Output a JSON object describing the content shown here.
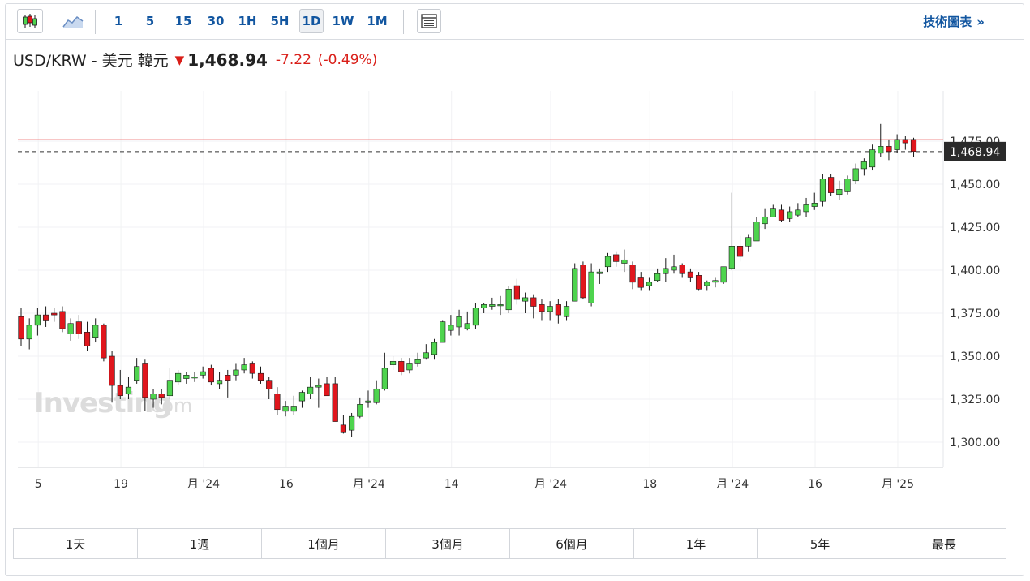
{
  "toolbar": {
    "chart_type_icons": [
      "candlestick-icon",
      "area-chart-icon"
    ],
    "intervals": [
      "1",
      "5",
      "15",
      "30",
      "1H",
      "5H",
      "1D",
      "1W",
      "1M"
    ],
    "active_interval": "1D",
    "table_icon": "table-view-icon",
    "tech_link": "技術圖表",
    "tech_chevron": "»"
  },
  "quote": {
    "symbol": "USD/KRW - 美元 韓元",
    "direction_icon": "down-arrow-icon",
    "price": "1,468.94",
    "change": "-7.22",
    "change_pct": "(-0.49%)"
  },
  "colors": {
    "up": "#4ed44e",
    "down": "#e0161d",
    "down_text": "#d91e18",
    "link": "#1256a0"
  },
  "watermark": {
    "brand": "Investing",
    "suffix": "com"
  },
  "range_buttons": [
    "1天",
    "1週",
    "1個月",
    "3個月",
    "6個月",
    "1年",
    "5年",
    "最長"
  ],
  "chart_data": {
    "type": "candlestick",
    "last_price_label": "1,468.94",
    "last_price": 1468.94,
    "high_line": 1475,
    "y_ticks": [
      "1,300.00",
      "1,325.00",
      "1,350.00",
      "1,375.00",
      "1,400.00",
      "1,425.00",
      "1,450.00",
      "1,475.00"
    ],
    "y_tick_values": [
      1300,
      1325,
      1350,
      1375,
      1400,
      1425,
      1450,
      1475
    ],
    "x_ticks": [
      {
        "label": "5",
        "index": 1
      },
      {
        "label": "19",
        "index": 11
      },
      {
        "label": "月 '24",
        "index": 21
      },
      {
        "label": "16",
        "index": 31
      },
      {
        "label": "月 '24",
        "index": 41
      },
      {
        "label": "14",
        "index": 51
      },
      {
        "label": "月 '24",
        "index": 63
      },
      {
        "label": "18",
        "index": 75
      },
      {
        "label": "月 '24",
        "index": 85
      },
      {
        "label": "16",
        "index": 95
      },
      {
        "label": "月 '25",
        "index": 105
      }
    ],
    "ohlc": [
      [
        1373,
        1378,
        1356,
        1360
      ],
      [
        1360,
        1372,
        1354,
        1368
      ],
      [
        1368,
        1378,
        1362,
        1374
      ],
      [
        1374,
        1379,
        1367,
        1371
      ],
      [
        1375,
        1378,
        1370,
        1374
      ],
      [
        1376,
        1379,
        1364,
        1366
      ],
      [
        1363,
        1372,
        1359,
        1369
      ],
      [
        1370,
        1374,
        1360,
        1363
      ],
      [
        1364,
        1370,
        1353,
        1356
      ],
      [
        1361,
        1372,
        1358,
        1368
      ],
      [
        1368,
        1369,
        1347,
        1349
      ],
      [
        1350,
        1353,
        1323,
        1333
      ],
      [
        1333,
        1342,
        1325,
        1327
      ],
      [
        1328,
        1338,
        1325,
        1332
      ],
      [
        1336,
        1349,
        1334,
        1344
      ],
      [
        1346,
        1348,
        1318,
        1326
      ],
      [
        1325,
        1331,
        1320,
        1328
      ],
      [
        1328,
        1331,
        1322,
        1326
      ],
      [
        1327,
        1343,
        1325,
        1336
      ],
      [
        1335,
        1342,
        1333,
        1340
      ],
      [
        1337,
        1341,
        1334,
        1339
      ],
      [
        1338,
        1341,
        1335,
        1338
      ],
      [
        1339,
        1344,
        1337,
        1341
      ],
      [
        1343,
        1345,
        1333,
        1335
      ],
      [
        1334,
        1341,
        1331,
        1336
      ],
      [
        1339,
        1342,
        1326,
        1336
      ],
      [
        1339,
        1346,
        1336,
        1342
      ],
      [
        1342,
        1349,
        1340,
        1345
      ],
      [
        1346,
        1347,
        1337,
        1340
      ],
      [
        1340,
        1344,
        1334,
        1336
      ],
      [
        1336,
        1338,
        1325,
        1331
      ],
      [
        1328,
        1332,
        1316,
        1319
      ],
      [
        1318,
        1324,
        1315,
        1321
      ],
      [
        1318,
        1327,
        1316,
        1321
      ],
      [
        1324,
        1330,
        1320,
        1329
      ],
      [
        1328,
        1338,
        1325,
        1332
      ],
      [
        1332,
        1337,
        1320,
        1333
      ],
      [
        1334,
        1338,
        1327,
        1327
      ],
      [
        1334,
        1338,
        1312,
        1312
      ],
      [
        1310,
        1316,
        1305,
        1306
      ],
      [
        1307,
        1317,
        1303,
        1315
      ],
      [
        1315,
        1326,
        1314,
        1322
      ],
      [
        1323,
        1330,
        1320,
        1324
      ],
      [
        1323,
        1336,
        1322,
        1331
      ],
      [
        1331,
        1352,
        1330,
        1343
      ],
      [
        1345,
        1350,
        1342,
        1347
      ],
      [
        1347,
        1349,
        1339,
        1341
      ],
      [
        1342,
        1349,
        1340,
        1346
      ],
      [
        1346,
        1352,
        1344,
        1348
      ],
      [
        1349,
        1357,
        1348,
        1352
      ],
      [
        1351,
        1360,
        1348,
        1358
      ],
      [
        1358,
        1371,
        1358,
        1370
      ],
      [
        1365,
        1374,
        1362,
        1368
      ],
      [
        1367,
        1377,
        1362,
        1373
      ],
      [
        1366,
        1376,
        1365,
        1369
      ],
      [
        1368,
        1381,
        1366,
        1378
      ],
      [
        1378,
        1381,
        1375,
        1380
      ],
      [
        1379,
        1384,
        1377,
        1380
      ],
      [
        1380,
        1385,
        1374,
        1380
      ],
      [
        1377,
        1391,
        1375,
        1389
      ],
      [
        1391,
        1395,
        1380,
        1383
      ],
      [
        1382,
        1387,
        1375,
        1384
      ],
      [
        1384,
        1386,
        1372,
        1379
      ],
      [
        1380,
        1383,
        1371,
        1376
      ],
      [
        1376,
        1382,
        1371,
        1379
      ],
      [
        1380,
        1383,
        1369,
        1374
      ],
      [
        1373,
        1382,
        1371,
        1379
      ],
      [
        1382,
        1404,
        1382,
        1401
      ],
      [
        1403,
        1405,
        1383,
        1384
      ],
      [
        1381,
        1404,
        1379,
        1399
      ],
      [
        1398,
        1401,
        1392,
        1399
      ],
      [
        1402,
        1410,
        1399,
        1408
      ],
      [
        1409,
        1411,
        1402,
        1405
      ],
      [
        1404,
        1412,
        1399,
        1406
      ],
      [
        1403,
        1405,
        1389,
        1393
      ],
      [
        1396,
        1399,
        1388,
        1390
      ],
      [
        1391,
        1396,
        1388,
        1393
      ],
      [
        1394,
        1401,
        1393,
        1398
      ],
      [
        1398,
        1407,
        1393,
        1401
      ],
      [
        1400,
        1409,
        1398,
        1402
      ],
      [
        1403,
        1404,
        1396,
        1398
      ],
      [
        1399,
        1401,
        1393,
        1396
      ],
      [
        1397,
        1399,
        1388,
        1389
      ],
      [
        1391,
        1394,
        1388,
        1393
      ],
      [
        1393,
        1396,
        1390,
        1394
      ],
      [
        1393,
        1402,
        1392,
        1402
      ],
      [
        1401,
        1445,
        1400,
        1414
      ],
      [
        1414,
        1420,
        1405,
        1408
      ],
      [
        1414,
        1421,
        1411,
        1419
      ],
      [
        1417,
        1431,
        1417,
        1428
      ],
      [
        1427,
        1436,
        1424,
        1431
      ],
      [
        1431,
        1438,
        1431,
        1436
      ],
      [
        1435,
        1438,
        1428,
        1429
      ],
      [
        1430,
        1437,
        1428,
        1434
      ],
      [
        1432,
        1439,
        1431,
        1435
      ],
      [
        1434,
        1442,
        1431,
        1438
      ],
      [
        1437,
        1445,
        1435,
        1439
      ],
      [
        1440,
        1456,
        1437,
        1453
      ],
      [
        1454,
        1456,
        1443,
        1445
      ],
      [
        1444,
        1452,
        1441,
        1447
      ],
      [
        1446,
        1455,
        1444,
        1453
      ],
      [
        1452,
        1462,
        1450,
        1459
      ],
      [
        1459,
        1465,
        1455,
        1463
      ],
      [
        1460,
        1473,
        1458,
        1470
      ],
      [
        1468,
        1485,
        1466,
        1472
      ],
      [
        1472,
        1476,
        1464,
        1469
      ],
      [
        1470,
        1479,
        1468,
        1476
      ],
      [
        1476,
        1478,
        1470,
        1474
      ],
      [
        1476,
        1477,
        1466,
        1469
      ]
    ]
  }
}
